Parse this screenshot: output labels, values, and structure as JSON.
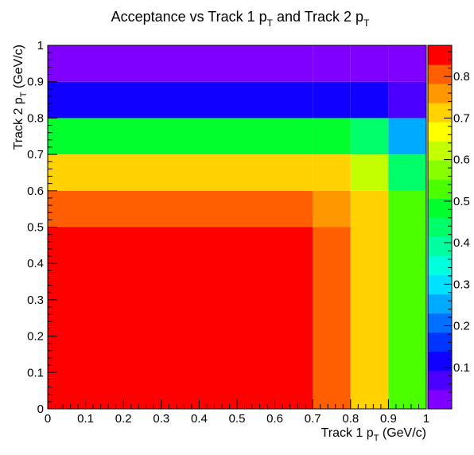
{
  "chart_data": {
    "type": "heatmap",
    "title": {
      "main": "Acceptance vs Track 1 p",
      "sub1": "T",
      "mid": " and Track 2 p",
      "sub2": "T"
    },
    "xlabel": {
      "main": "Track 1 p",
      "sub": "T",
      "tail": " (GeV/c)"
    },
    "ylabel": {
      "main": "Track 2 p",
      "sub": "T",
      "tail": " (GeV/c)"
    },
    "x_edges": [
      0,
      0.7,
      0.8,
      0.9,
      1.0
    ],
    "y_edges": [
      0,
      0.5,
      0.6,
      0.7,
      0.8,
      0.9,
      1.0
    ],
    "z": [
      [
        0.85,
        0.82,
        0.7,
        0.52
      ],
      [
        0.82,
        0.77,
        0.7,
        0.52
      ],
      [
        0.7,
        0.7,
        0.62,
        0.45
      ],
      [
        0.48,
        0.48,
        0.42,
        0.25
      ],
      [
        0.1,
        0.1,
        0.1,
        0.05
      ],
      [
        0.02,
        0.02,
        0.02,
        0.02
      ]
    ],
    "xlim": [
      0,
      1
    ],
    "ylim": [
      0,
      1
    ],
    "x_ticks": [
      "0",
      "0.1",
      "0.2",
      "0.3",
      "0.4",
      "0.5",
      "0.6",
      "0.7",
      "0.8",
      "0.9",
      "1"
    ],
    "y_ticks": [
      "0",
      "0.1",
      "0.2",
      "0.3",
      "0.4",
      "0.5",
      "0.6",
      "0.7",
      "0.8",
      "0.9",
      "1"
    ],
    "colorbar": {
      "zmin": 0,
      "zmax": 0.875,
      "ticks": [
        "0.1",
        "0.2",
        "0.3",
        "0.4",
        "0.5",
        "0.6",
        "0.7",
        "0.8"
      ],
      "tick_values": [
        0.1,
        0.2,
        0.3,
        0.4,
        0.5,
        0.6,
        0.7,
        0.8
      ],
      "levels": [
        "#7f00ff",
        "#4b00ff",
        "#0f00ff",
        "#0035ff",
        "#0070ff",
        "#00aaff",
        "#00e1ff",
        "#00ffdc",
        "#00ffa1",
        "#00ff69",
        "#00ff2d",
        "#4bff00",
        "#87ff00",
        "#c3ff00",
        "#ffff00",
        "#ffd200",
        "#ff9700",
        "#ff5f00",
        "#ff0000"
      ]
    },
    "grid": false
  }
}
